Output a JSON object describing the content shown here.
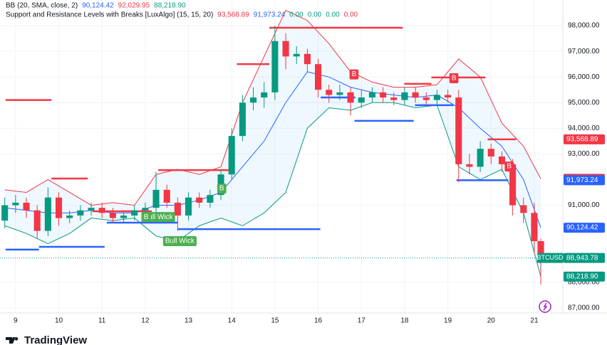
{
  "chart_data": {
    "type": "candlestick",
    "symbol": "BTCUSD",
    "header": [
      [
        {
          "text": "BB (20, SMA, close, 2)",
          "color": "#131722"
        },
        {
          "text": "90,124.42",
          "color": "#2962ff"
        },
        {
          "text": "92,029.95",
          "color": "#f23645"
        },
        {
          "text": "88,218.90",
          "color": "#089981"
        }
      ],
      [
        {
          "text": "Support and Resistance Levels with Breaks [LuxAlgo] (15, 15, 20)",
          "color": "#131722"
        },
        {
          "text": "93,568.89",
          "color": "#f23645"
        },
        {
          "text": "91,973.24",
          "color": "#2962ff"
        },
        {
          "text": "0.00",
          "color": "#089981"
        },
        {
          "text": "0.00",
          "color": "#089981"
        },
        {
          "text": "0.00",
          "color": "#089981"
        },
        {
          "text": "0.00",
          "color": "#f23645"
        }
      ]
    ],
    "xlim": [
      8.64,
      21.66
    ],
    "ylim": [
      86800,
      99000
    ],
    "xticks": [
      9,
      10,
      11,
      12,
      13,
      14,
      15,
      16,
      17,
      18,
      19,
      20,
      21
    ],
    "yticks": [
      {
        "value": 87000,
        "label": "87,000.00"
      },
      {
        "value": 88000,
        "label": "88,000.00"
      },
      {
        "value": 91000,
        "label": "91,000.00"
      },
      {
        "value": 93000,
        "label": "93,000.00"
      },
      {
        "value": 94000,
        "label": "94,000.00"
      },
      {
        "value": 95000,
        "label": "95,000.00"
      },
      {
        "value": 96000,
        "label": "96,000.00"
      },
      {
        "value": 97000,
        "label": "97,000.00"
      },
      {
        "value": 98000,
        "label": "98,000.00"
      }
    ],
    "up_color": "#089981",
    "down_color": "#f23645",
    "candles": {
      "x": [
        8.75,
        9,
        9.25,
        9.5,
        9.75,
        10,
        10.25,
        10.5,
        10.75,
        11,
        11.25,
        11.5,
        11.75,
        12,
        12.25,
        12.5,
        12.75,
        13,
        13.25,
        13.5,
        13.75,
        14,
        14.25,
        14.5,
        14.75,
        15,
        15.25,
        15.5,
        15.75,
        16,
        16.25,
        16.5,
        16.75,
        17,
        17.25,
        17.5,
        17.75,
        18,
        18.25,
        18.5,
        18.75,
        19,
        19.25,
        19.5,
        19.75,
        20,
        20.25,
        20.5,
        20.75,
        21,
        21.15
      ],
      "open": [
        90400,
        91000,
        91100,
        90800,
        90000,
        91300,
        90500,
        90600,
        90800,
        90900,
        90700,
        90500,
        90600,
        90800,
        90900,
        91600,
        91100,
        90600,
        91300,
        91100,
        91400,
        92200,
        93700,
        95000,
        95200,
        95400,
        97400,
        96800,
        96900,
        96500,
        95500,
        95300,
        95400,
        95000,
        95200,
        95400,
        95200,
        95100,
        95400,
        95200,
        95100,
        95300,
        95200,
        92600,
        92500,
        93200,
        92900,
        92600,
        91000,
        90700,
        89600
      ],
      "high": [
        91300,
        91400,
        91300,
        91000,
        91700,
        91500,
        90800,
        91000,
        91100,
        91100,
        90900,
        90800,
        91000,
        91100,
        92300,
        91800,
        91300,
        91500,
        91500,
        91600,
        92400,
        94000,
        95300,
        95600,
        95800,
        98000,
        97700,
        97200,
        97100,
        96700,
        95700,
        95700,
        95600,
        95500,
        95600,
        95600,
        95400,
        95600,
        95600,
        95400,
        95500,
        95500,
        95500,
        93000,
        93500,
        93400,
        93100,
        92800,
        91300,
        91100,
        89700
      ],
      "low": [
        90100,
        90700,
        90500,
        89700,
        89800,
        90200,
        90300,
        90400,
        90600,
        90500,
        90300,
        90300,
        90400,
        90600,
        90700,
        90900,
        90000,
        90400,
        90900,
        90900,
        91200,
        92000,
        93500,
        94700,
        94800,
        95100,
        96300,
        96500,
        96200,
        95200,
        95000,
        95100,
        94500,
        94800,
        95000,
        95000,
        94900,
        94900,
        95000,
        94900,
        94900,
        95000,
        91900,
        92200,
        92300,
        92600,
        92300,
        90600,
        90300,
        89100,
        87900
      ],
      "close": [
        91000,
        91100,
        90800,
        90000,
        91300,
        90500,
        90600,
        90800,
        90900,
        90700,
        90500,
        90600,
        90800,
        90900,
        91600,
        91100,
        90600,
        91300,
        91100,
        91400,
        92200,
        93700,
        95000,
        95200,
        95400,
        97400,
        96800,
        96900,
        96500,
        95500,
        95300,
        95400,
        95000,
        95200,
        95400,
        95200,
        95100,
        95400,
        95200,
        95100,
        95300,
        95200,
        92600,
        92500,
        93200,
        92900,
        92600,
        91000,
        90700,
        89600,
        88943.78
      ]
    },
    "bands": {
      "x": [
        8.75,
        9.25,
        9.75,
        10.25,
        10.75,
        11.25,
        11.75,
        12.25,
        12.75,
        13.25,
        13.75,
        14.25,
        14.75,
        15.25,
        15.75,
        16.25,
        16.75,
        17.25,
        17.75,
        18.25,
        18.75,
        19.25,
        19.75,
        20.25,
        20.75,
        21.15
      ],
      "fill": "#2196f3",
      "series": [
        {
          "color": "#f23645",
          "values": [
            91600,
            91500,
            92000,
            91500,
            91000,
            91100,
            91000,
            92200,
            92400,
            92200,
            92500,
            95000,
            96800,
            98600,
            98200,
            97300,
            96200,
            95800,
            95600,
            95600,
            95700,
            96700,
            96000,
            94200,
            93300,
            92029.95
          ]
        },
        {
          "color": "#2962ff",
          "values": [
            90900,
            90800,
            90700,
            90700,
            90800,
            90700,
            90700,
            91000,
            91000,
            91200,
            91500,
            92500,
            93500,
            95000,
            96200,
            96000,
            95600,
            95400,
            95300,
            95200,
            95300,
            94800,
            94000,
            93300,
            92000,
            90124.42
          ]
        },
        {
          "color": "#089981",
          "values": [
            90200,
            89900,
            89500,
            89900,
            90500,
            90400,
            90500,
            89800,
            89600,
            90200,
            90500,
            90200,
            90700,
            91500,
            94000,
            94800,
            94700,
            95000,
            95000,
            94800,
            94900,
            92500,
            92000,
            92400,
            90700,
            88218.9
          ]
        }
      ]
    },
    "levels": [
      {
        "color": "#f23645",
        "x": [
          8.77,
          9.83
        ],
        "value": 95100
      },
      {
        "color": "#f23645",
        "x": [
          9.83,
          10.67
        ],
        "value": 92040
      },
      {
        "color": "#f23645",
        "x": [
          10.78,
          12.15
        ],
        "value": 90765
      },
      {
        "color": "#f23645",
        "x": [
          12.3,
          14.05
        ],
        "value": 92370
      },
      {
        "color": "#f23645",
        "x": [
          14.12,
          14.87
        ],
        "value": 96500
      },
      {
        "color": "#f23645",
        "x": [
          14.87,
          17.96
        ],
        "value": 97920
      },
      {
        "color": "#f23645",
        "x": [
          17.99,
          18.62
        ],
        "value": 95730
      },
      {
        "color": "#f23645",
        "x": [
          18.62,
          19.87
        ],
        "value": 95980
      },
      {
        "color": "#f23645",
        "x": [
          19.92,
          20.58
        ],
        "value": 93568.89
      },
      {
        "color": "#2962ff",
        "x": [
          8.77,
          9.54
        ],
        "value": 89270
      },
      {
        "color": "#2962ff",
        "x": [
          9.54,
          11.06
        ],
        "value": 89380
      },
      {
        "color": "#2962ff",
        "x": [
          11.11,
          12.76
        ],
        "value": 90320
      },
      {
        "color": "#2962ff",
        "x": [
          12.76,
          16.05
        ],
        "value": 90070
      },
      {
        "color": "#2962ff",
        "x": [
          16.06,
          16.86
        ],
        "value": 95200
      },
      {
        "color": "#2962ff",
        "x": [
          16.84,
          18.21
        ],
        "value": 94290
      },
      {
        "color": "#2962ff",
        "x": [
          18.24,
          19.13
        ],
        "value": 94900
      },
      {
        "color": "#2962ff",
        "x": [
          19.2,
          20.4
        ],
        "value": 91973.24
      }
    ],
    "annotations": [
      {
        "text": "Bull Wick",
        "x": 12.3,
        "y": 90540,
        "color": "#4caf50"
      },
      {
        "text": "B",
        "x": 12.02,
        "y": 90540,
        "color": "#4caf50"
      },
      {
        "text": "Bull Wick",
        "x": 12.8,
        "y": 89600,
        "color": "#4caf50"
      },
      {
        "text": "B",
        "x": 13.77,
        "y": 91650,
        "color": "#4caf50"
      },
      {
        "text": "B",
        "x": 16.83,
        "y": 96100,
        "color": "#f23645"
      },
      {
        "text": "B",
        "x": 19.14,
        "y": 95950,
        "color": "#f23645"
      },
      {
        "text": "B",
        "x": 20.42,
        "y": 92510,
        "color": "#f23645"
      }
    ],
    "price_labels": [
      {
        "value": 93568.89,
        "label": "93,568.89",
        "color": "#f23645"
      },
      {
        "value": 92029.95,
        "label": "92,029.95",
        "color": "#f23645"
      },
      {
        "value": 91973.24,
        "label": "91,973.24",
        "color": "#2962ff"
      },
      {
        "value": 90124.42,
        "label": "90,124.42",
        "color": "#2962ff"
      },
      {
        "value": 88943.78,
        "label": "88,943.78",
        "color": "#089981"
      },
      {
        "value": 88218.9,
        "label": "88,218.90",
        "color": "#089981"
      }
    ],
    "brand": "TradingView"
  }
}
